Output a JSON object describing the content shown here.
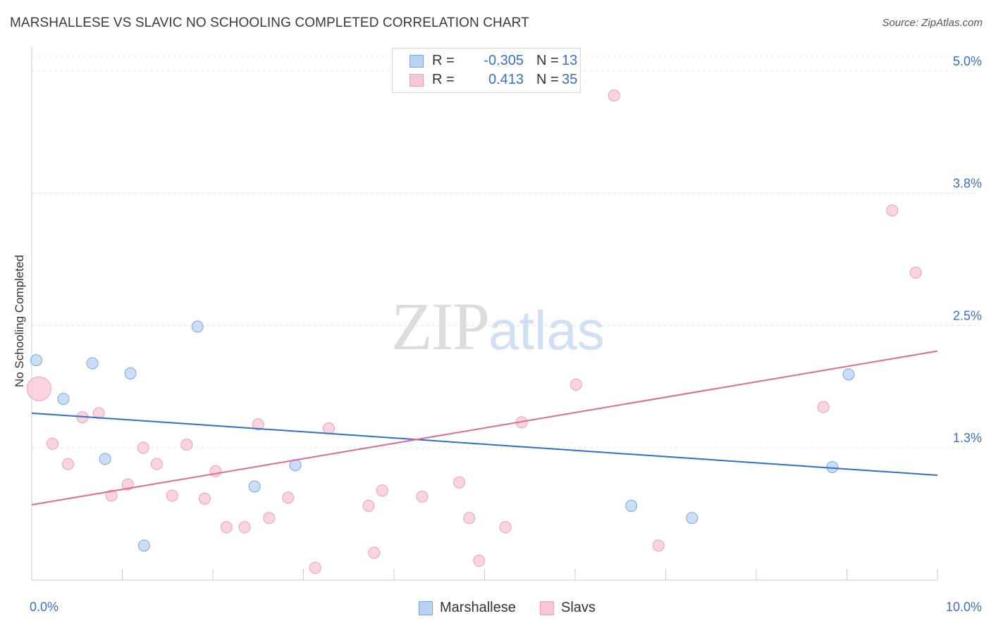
{
  "header": {
    "title": "MARSHALLESE VS SLAVIC NO SCHOOLING COMPLETED CORRELATION CHART",
    "source": "Source: ZipAtlas.com"
  },
  "legend": {
    "rows": [
      {
        "r_label": "R =",
        "r_value": "-0.305",
        "n_label": "N =",
        "n_value": "13"
      },
      {
        "r_label": "R =",
        "r_value": "0.413",
        "n_label": "N =",
        "n_value": "35"
      }
    ]
  },
  "watermark": {
    "zip": "ZIP",
    "atlas": "atlas"
  },
  "colors": {
    "marshallese_fill": "#b8d3f5",
    "marshallese_stroke": "#7aa6e0",
    "marshallese_line": "#2f6fcd",
    "slavs_fill": "#f9c6d5",
    "slavs_stroke": "#eea0b8",
    "slavs_line": "#e06a92",
    "tick_label": "#3b6fc8",
    "grid": "#e2e2e2",
    "axis": "#cccccc"
  },
  "chart_data": {
    "type": "scatter",
    "title": "MARSHALLESE VS SLAVIC NO SCHOOLING COMPLETED CORRELATION CHART",
    "xlabel": "",
    "ylabel": "No Schooling Completed",
    "xlim": [
      0,
      10
    ],
    "ylim": [
      0,
      5.2
    ],
    "x_tick_labels": [
      "0.0%",
      "10.0%"
    ],
    "y_ticks": [
      1.3,
      2.5,
      3.8,
      5.0
    ],
    "y_tick_labels": [
      "1.3%",
      "2.5%",
      "3.8%",
      "5.0%"
    ],
    "series": [
      {
        "name": "Marshallese",
        "r": -0.305,
        "n": 13,
        "trend": {
          "x": [
            0,
            10
          ],
          "y": [
            1.64,
            1.03
          ]
        },
        "points": [
          {
            "x": 0.05,
            "y": 2.16,
            "big": false
          },
          {
            "x": 0.35,
            "y": 1.78,
            "big": false
          },
          {
            "x": 0.67,
            "y": 2.13,
            "big": false
          },
          {
            "x": 1.09,
            "y": 2.03,
            "big": false
          },
          {
            "x": 1.83,
            "y": 2.49,
            "big": false
          },
          {
            "x": 0.81,
            "y": 1.19,
            "big": false
          },
          {
            "x": 1.24,
            "y": 0.34,
            "big": false
          },
          {
            "x": 2.46,
            "y": 0.92,
            "big": false
          },
          {
            "x": 2.91,
            "y": 1.13,
            "big": false
          },
          {
            "x": 6.62,
            "y": 0.73,
            "big": false
          },
          {
            "x": 7.29,
            "y": 0.61,
            "big": false
          },
          {
            "x": 9.02,
            "y": 2.02,
            "big": false
          },
          {
            "x": 8.84,
            "y": 1.11,
            "big": false
          }
        ]
      },
      {
        "name": "Slavs",
        "r": 0.413,
        "n": 35,
        "trend": {
          "x": [
            0,
            10
          ],
          "y": [
            0.74,
            2.25
          ]
        },
        "points": [
          {
            "x": 0.08,
            "y": 1.88,
            "big": true
          },
          {
            "x": 0.23,
            "y": 1.34,
            "big": false
          },
          {
            "x": 0.4,
            "y": 1.14,
            "big": false
          },
          {
            "x": 0.56,
            "y": 1.6,
            "big": false
          },
          {
            "x": 0.74,
            "y": 1.64,
            "big": false
          },
          {
            "x": 0.88,
            "y": 0.83,
            "big": false
          },
          {
            "x": 1.06,
            "y": 0.94,
            "big": false
          },
          {
            "x": 1.23,
            "y": 1.3,
            "big": false
          },
          {
            "x": 1.38,
            "y": 1.14,
            "big": false
          },
          {
            "x": 1.55,
            "y": 0.83,
            "big": false
          },
          {
            "x": 1.71,
            "y": 1.33,
            "big": false
          },
          {
            "x": 1.91,
            "y": 0.8,
            "big": false
          },
          {
            "x": 2.03,
            "y": 1.07,
            "big": false
          },
          {
            "x": 2.15,
            "y": 0.52,
            "big": false
          },
          {
            "x": 2.35,
            "y": 0.52,
            "big": false
          },
          {
            "x": 2.5,
            "y": 1.53,
            "big": false
          },
          {
            "x": 2.62,
            "y": 0.61,
            "big": false
          },
          {
            "x": 2.83,
            "y": 0.81,
            "big": false
          },
          {
            "x": 3.13,
            "y": 0.12,
            "big": false
          },
          {
            "x": 3.28,
            "y": 1.49,
            "big": false
          },
          {
            "x": 3.72,
            "y": 0.73,
            "big": false
          },
          {
            "x": 3.87,
            "y": 0.88,
            "big": false
          },
          {
            "x": 3.78,
            "y": 0.27,
            "big": false
          },
          {
            "x": 4.31,
            "y": 0.82,
            "big": false
          },
          {
            "x": 4.72,
            "y": 0.96,
            "big": false
          },
          {
            "x": 4.83,
            "y": 0.61,
            "big": false
          },
          {
            "x": 4.94,
            "y": 0.19,
            "big": false
          },
          {
            "x": 5.23,
            "y": 0.52,
            "big": false
          },
          {
            "x": 5.41,
            "y": 1.55,
            "big": false
          },
          {
            "x": 6.01,
            "y": 1.92,
            "big": false
          },
          {
            "x": 6.43,
            "y": 4.76,
            "big": false
          },
          {
            "x": 6.92,
            "y": 0.34,
            "big": false
          },
          {
            "x": 8.74,
            "y": 1.7,
            "big": false
          },
          {
            "x": 9.5,
            "y": 3.63,
            "big": false
          },
          {
            "x": 9.76,
            "y": 3.02,
            "big": false
          }
        ]
      }
    ]
  }
}
